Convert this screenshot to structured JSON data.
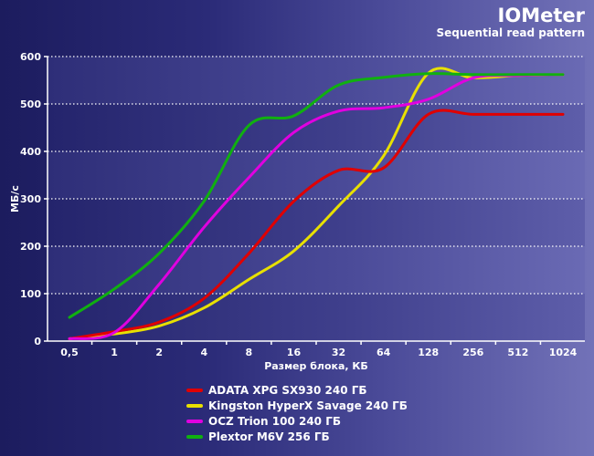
{
  "chart_data": {
    "type": "line",
    "title": "IOMeter",
    "subtitle": "Sequential read pattern",
    "xlabel": "Размер блока, КБ",
    "ylabel": "МБ/с",
    "categories": [
      "0,5",
      "1",
      "2",
      "4",
      "8",
      "16",
      "32",
      "64",
      "128",
      "256",
      "512",
      "1024"
    ],
    "ylim": [
      0,
      600
    ],
    "yticks": [
      0,
      100,
      200,
      300,
      400,
      500,
      600
    ],
    "grid": true,
    "legend_position": "bottom",
    "series": [
      {
        "name": "ADATA XPG SX930 240 ГБ",
        "color": "#e00000",
        "values": [
          5,
          20,
          40,
          90,
          185,
          295,
          360,
          365,
          478,
          478,
          478,
          478
        ]
      },
      {
        "name": "Kingston HyperX Savage 240 ГБ",
        "color": "#e8e000",
        "values": [
          5,
          15,
          32,
          70,
          130,
          190,
          285,
          390,
          565,
          555,
          560,
          562
        ]
      },
      {
        "name": "OCZ Trion 100 240 ГБ",
        "color": "#e000e0",
        "values": [
          5,
          18,
          120,
          240,
          345,
          440,
          485,
          492,
          510,
          555,
          560,
          562
        ]
      },
      {
        "name": "Plextor M6V  256 ГБ",
        "color": "#10b010",
        "values": [
          50,
          110,
          185,
          295,
          455,
          475,
          540,
          556,
          564,
          562,
          562,
          562
        ]
      }
    ]
  }
}
